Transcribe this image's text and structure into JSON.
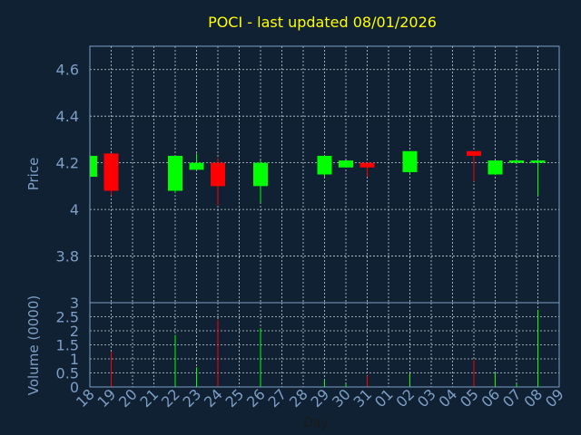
{
  "chart_data": {
    "type": "candlestick",
    "title": "POCI - last updated 08/01/2026",
    "title_color": "#ffff00",
    "background": "#0f2133",
    "up_color": "#00ff00",
    "down_color": "#ff0000",
    "axis_color": "#7f9ec5",
    "xlabel": "Day",
    "x_ticks": [
      "18",
      "19",
      "20",
      "21",
      "22",
      "23",
      "24",
      "25",
      "26",
      "27",
      "28",
      "29",
      "30",
      "31",
      "01",
      "02",
      "03",
      "04",
      "05",
      "06",
      "07",
      "08",
      "09"
    ],
    "price_panel": {
      "ylabel": "Price",
      "ylim": [
        3.6,
        4.7
      ],
      "y_ticks": [
        3.8,
        4,
        4.2,
        4.4,
        4.6
      ],
      "y_tick_labels": [
        "3.8",
        "4",
        "4.2",
        "4.4",
        "4.6"
      ],
      "candles": [
        {
          "day": "18",
          "open": 4.14,
          "high": 4.23,
          "low": 4.14,
          "close": 4.23
        },
        {
          "day": "19",
          "open": 4.24,
          "high": 4.24,
          "low": 4.06,
          "close": 4.08
        },
        {
          "day": "22",
          "open": 4.08,
          "high": 4.23,
          "low": 4.07,
          "close": 4.23
        },
        {
          "day": "23",
          "open": 4.17,
          "high": 4.24,
          "low": 4.17,
          "close": 4.2
        },
        {
          "day": "24",
          "open": 4.2,
          "high": 4.22,
          "low": 4.02,
          "close": 4.1
        },
        {
          "day": "26",
          "open": 4.1,
          "high": 4.21,
          "low": 4.03,
          "close": 4.2
        },
        {
          "day": "29",
          "open": 4.15,
          "high": 4.23,
          "low": 4.14,
          "close": 4.23
        },
        {
          "day": "30",
          "open": 4.18,
          "high": 4.21,
          "low": 4.18,
          "close": 4.21
        },
        {
          "day": "31",
          "open": 4.2,
          "high": 4.2,
          "low": 4.14,
          "close": 4.18
        },
        {
          "day": "02",
          "open": 4.16,
          "high": 4.25,
          "low": 4.15,
          "close": 4.25
        },
        {
          "day": "05",
          "open": 4.25,
          "high": 4.25,
          "low": 4.12,
          "close": 4.23
        },
        {
          "day": "06",
          "open": 4.15,
          "high": 4.21,
          "low": 4.15,
          "close": 4.21
        },
        {
          "day": "07",
          "open": 4.2,
          "high": 4.21,
          "low": 4.2,
          "close": 4.21
        },
        {
          "day": "08",
          "open": 4.2,
          "high": 4.21,
          "low": 4.06,
          "close": 4.21
        }
      ]
    },
    "volume_panel": {
      "ylabel": "Volume (0000)",
      "ylim": [
        0,
        3
      ],
      "y_ticks": [
        0,
        0.5,
        1,
        1.5,
        2,
        2.5,
        3
      ],
      "y_tick_labels": [
        "0",
        "0.5",
        "1",
        "1.5",
        "2",
        "2.5",
        "3"
      ],
      "bars": [
        {
          "day": "19",
          "value": 1.25,
          "color": "#ff0000"
        },
        {
          "day": "22",
          "value": 1.85,
          "color": "#00ff00"
        },
        {
          "day": "23",
          "value": 0.7,
          "color": "#00ff00"
        },
        {
          "day": "24",
          "value": 2.4,
          "color": "#ff0000"
        },
        {
          "day": "26",
          "value": 2.1,
          "color": "#00ff00"
        },
        {
          "day": "29",
          "value": 0.25,
          "color": "#00ff00"
        },
        {
          "day": "30",
          "value": 0.1,
          "color": "#00ff00"
        },
        {
          "day": "31",
          "value": 0.4,
          "color": "#ff0000"
        },
        {
          "day": "02",
          "value": 0.5,
          "color": "#00ff00"
        },
        {
          "day": "05",
          "value": 0.95,
          "color": "#ff0000"
        },
        {
          "day": "06",
          "value": 0.5,
          "color": "#00ff00"
        },
        {
          "day": "07",
          "value": 0.1,
          "color": "#00ff00"
        },
        {
          "day": "08",
          "value": 2.75,
          "color": "#00ff00"
        }
      ]
    }
  }
}
